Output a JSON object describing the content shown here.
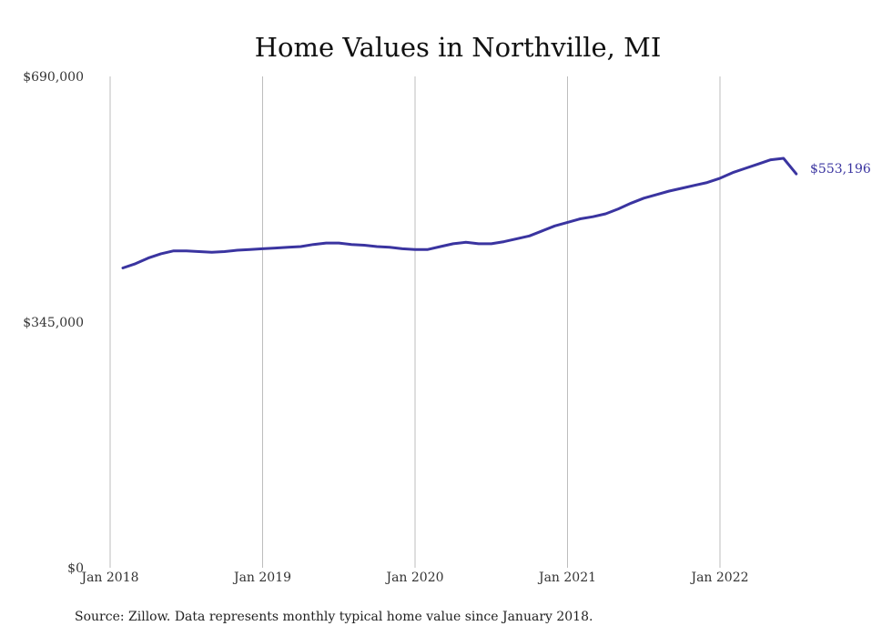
{
  "chart_data": {
    "type": "line",
    "title": "Home Values in Northville, MI",
    "xlabel": "",
    "ylabel": "",
    "ylim": [
      0,
      690000
    ],
    "yticks": [
      {
        "value": 0,
        "label": "$0"
      },
      {
        "value": 345000,
        "label": "$345,000"
      },
      {
        "value": 690000,
        "label": "$690,000"
      }
    ],
    "xticks": [
      {
        "value": "2018-01",
        "label": "Jan 2018"
      },
      {
        "value": "2019-01",
        "label": "Jan 2019"
      },
      {
        "value": "2020-01",
        "label": "Jan 2020"
      },
      {
        "value": "2021-01",
        "label": "Jan 2021"
      },
      {
        "value": "2022-01",
        "label": "Jan 2022"
      }
    ],
    "grid": "vertical",
    "series": [
      {
        "color": "#3a34a0",
        "x": [
          "2018-02",
          "2018-03",
          "2018-04",
          "2018-05",
          "2018-06",
          "2018-07",
          "2018-08",
          "2018-09",
          "2018-10",
          "2018-11",
          "2018-12",
          "2019-01",
          "2019-02",
          "2019-03",
          "2019-04",
          "2019-05",
          "2019-06",
          "2019-07",
          "2019-08",
          "2019-09",
          "2019-10",
          "2019-11",
          "2019-12",
          "2020-01",
          "2020-02",
          "2020-03",
          "2020-04",
          "2020-05",
          "2020-06",
          "2020-07",
          "2020-08",
          "2020-09",
          "2020-10",
          "2020-11",
          "2020-12",
          "2021-01",
          "2021-02",
          "2021-03",
          "2021-04",
          "2021-05",
          "2021-06",
          "2021-07",
          "2021-08",
          "2021-09",
          "2021-10",
          "2021-11",
          "2021-12",
          "2022-01",
          "2022-02",
          "2022-03",
          "2022-04",
          "2022-05",
          "2022-06",
          "2022-07"
        ],
        "values": [
          421000,
          427000,
          435000,
          441000,
          445000,
          445000,
          444000,
          443000,
          444000,
          446000,
          447000,
          448000,
          449000,
          450000,
          451000,
          454000,
          456000,
          456000,
          454000,
          453000,
          451000,
          450000,
          448000,
          447000,
          447000,
          451000,
          455000,
          457000,
          455000,
          455000,
          458000,
          462000,
          466000,
          473000,
          480000,
          485000,
          490000,
          493000,
          497000,
          504000,
          512000,
          519000,
          524000,
          529000,
          533000,
          537000,
          541000,
          547000,
          555000,
          561000,
          567000,
          573000,
          575000,
          553196
        ]
      }
    ],
    "end_label": "$553,196"
  },
  "source_note": "Source: Zillow. Data represents monthly typical home value since January 2018."
}
